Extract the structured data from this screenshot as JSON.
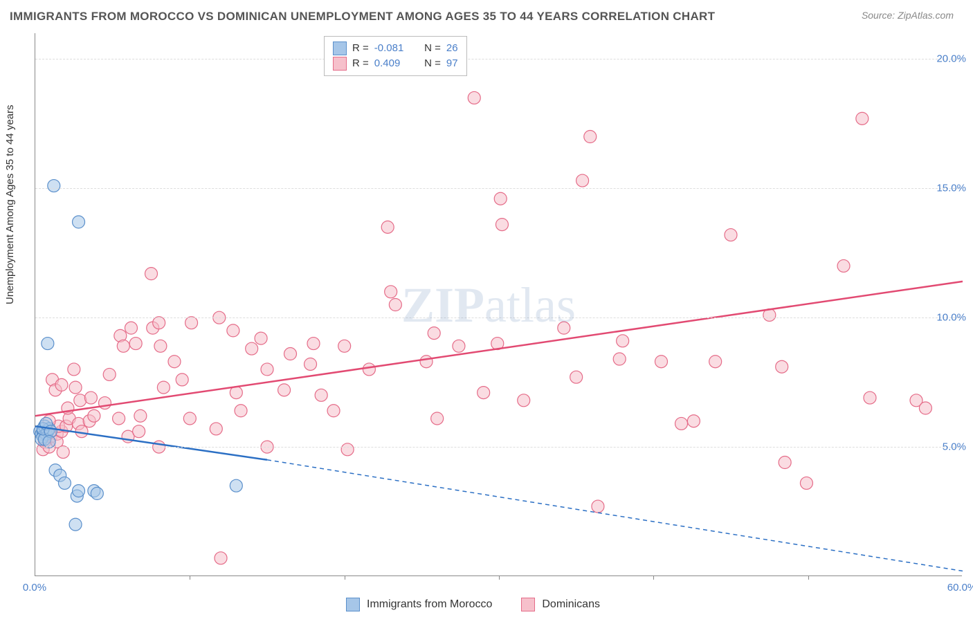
{
  "title": "IMMIGRANTS FROM MOROCCO VS DOMINICAN UNEMPLOYMENT AMONG AGES 35 TO 44 YEARS CORRELATION CHART",
  "source": "Source: ZipAtlas.com",
  "ylabel": "Unemployment Among Ages 35 to 44 years",
  "watermark_bold": "ZIP",
  "watermark_rest": "atlas",
  "chart": {
    "type": "scatter",
    "xlim": [
      0,
      60
    ],
    "ylim": [
      0,
      21
    ],
    "xtick_labels": [
      "0.0%",
      "60.0%"
    ],
    "xtick_positions": [
      0,
      60
    ],
    "xtick_marks": [
      10,
      20,
      30,
      40,
      50
    ],
    "ytick_labels": [
      "5.0%",
      "10.0%",
      "15.0%",
      "20.0%"
    ],
    "ytick_positions": [
      5,
      10,
      15,
      20
    ],
    "grid_color": "#dddddd",
    "background_color": "#ffffff",
    "marker_radius": 9,
    "marker_stroke_width": 1.2,
    "series": [
      {
        "name": "Immigrants from Morocco",
        "fill_color": "#a6c6e8",
        "stroke_color": "#5a8fcb",
        "fill_opacity": 0.55,
        "line_color": "#2b6fc4",
        "line_width": 2.5,
        "R": "-0.081",
        "N": "26",
        "trend_solid": {
          "x1": 0,
          "y1": 5.8,
          "x2": 15,
          "y2": 4.5
        },
        "trend_dashed": {
          "x1": 15,
          "y1": 4.5,
          "x2": 60,
          "y2": 0.2
        },
        "points": [
          [
            0.3,
            5.6
          ],
          [
            0.4,
            5.5
          ],
          [
            0.5,
            5.6
          ],
          [
            0.6,
            5.8
          ],
          [
            0.5,
            5.4
          ],
          [
            0.7,
            5.5
          ],
          [
            0.8,
            5.6
          ],
          [
            0.4,
            5.3
          ],
          [
            0.9,
            5.7
          ],
          [
            0.6,
            5.3
          ],
          [
            0.5,
            5.7
          ],
          [
            0.7,
            5.9
          ],
          [
            1.0,
            5.6
          ],
          [
            1.2,
            15.1
          ],
          [
            2.8,
            13.7
          ],
          [
            0.8,
            9.0
          ],
          [
            1.3,
            4.1
          ],
          [
            1.6,
            3.9
          ],
          [
            1.9,
            3.6
          ],
          [
            2.7,
            3.1
          ],
          [
            2.8,
            3.3
          ],
          [
            3.8,
            3.3
          ],
          [
            4.0,
            3.2
          ],
          [
            2.6,
            2.0
          ],
          [
            13.0,
            3.5
          ],
          [
            0.9,
            5.2
          ]
        ]
      },
      {
        "name": "Dominicans",
        "fill_color": "#f6c0cb",
        "stroke_color": "#e56b88",
        "fill_opacity": 0.55,
        "line_color": "#e24a72",
        "line_width": 2.5,
        "R": "0.409",
        "N": "97",
        "trend_solid": {
          "x1": 0,
          "y1": 6.2,
          "x2": 60,
          "y2": 11.4
        },
        "trend_dashed": null,
        "points": [
          [
            0.5,
            4.9
          ],
          [
            0.6,
            5.2
          ],
          [
            0.9,
            5.0
          ],
          [
            1.0,
            5.4
          ],
          [
            1.4,
            5.5
          ],
          [
            1.4,
            5.2
          ],
          [
            1.7,
            5.6
          ],
          [
            1.5,
            5.8
          ],
          [
            1.8,
            4.8
          ],
          [
            2.0,
            5.8
          ],
          [
            2.2,
            6.1
          ],
          [
            2.1,
            6.5
          ],
          [
            2.8,
            5.9
          ],
          [
            2.9,
            6.8
          ],
          [
            1.1,
            7.6
          ],
          [
            1.3,
            7.2
          ],
          [
            1.7,
            7.4
          ],
          [
            2.6,
            7.3
          ],
          [
            2.5,
            8.0
          ],
          [
            0.9,
            6.0
          ],
          [
            3.5,
            6.0
          ],
          [
            3.6,
            6.9
          ],
          [
            3.8,
            6.2
          ],
          [
            4.5,
            6.7
          ],
          [
            4.8,
            7.8
          ],
          [
            3.0,
            5.6
          ],
          [
            5.4,
            6.1
          ],
          [
            5.5,
            9.3
          ],
          [
            5.7,
            8.9
          ],
          [
            6.2,
            9.6
          ],
          [
            6.5,
            9.0
          ],
          [
            6.8,
            6.2
          ],
          [
            6.0,
            5.4
          ],
          [
            6.7,
            5.6
          ],
          [
            7.5,
            11.7
          ],
          [
            7.6,
            9.6
          ],
          [
            8.0,
            9.8
          ],
          [
            8.1,
            8.9
          ],
          [
            8.3,
            7.3
          ],
          [
            8.0,
            5.0
          ],
          [
            9.0,
            8.3
          ],
          [
            9.5,
            7.6
          ],
          [
            10.1,
            9.8
          ],
          [
            10.0,
            6.1
          ],
          [
            11.7,
            5.7
          ],
          [
            11.9,
            10.0
          ],
          [
            12.8,
            9.5
          ],
          [
            13.0,
            7.1
          ],
          [
            13.3,
            6.4
          ],
          [
            14.0,
            8.8
          ],
          [
            14.6,
            9.2
          ],
          [
            15.0,
            8.0
          ],
          [
            15.0,
            5.0
          ],
          [
            16.1,
            7.2
          ],
          [
            16.5,
            8.6
          ],
          [
            17.8,
            8.2
          ],
          [
            18.0,
            9.0
          ],
          [
            18.5,
            7.0
          ],
          [
            19.3,
            6.4
          ],
          [
            20.0,
            8.9
          ],
          [
            20.2,
            4.9
          ],
          [
            21.6,
            8.0
          ],
          [
            22.8,
            13.5
          ],
          [
            23.0,
            11.0
          ],
          [
            23.3,
            10.5
          ],
          [
            25.3,
            8.3
          ],
          [
            25.8,
            9.4
          ],
          [
            26.0,
            6.1
          ],
          [
            27.4,
            8.9
          ],
          [
            28.4,
            18.5
          ],
          [
            29.0,
            7.1
          ],
          [
            29.9,
            9.0
          ],
          [
            30.1,
            14.6
          ],
          [
            30.2,
            13.6
          ],
          [
            31.6,
            6.8
          ],
          [
            34.2,
            9.6
          ],
          [
            35.0,
            7.7
          ],
          [
            35.4,
            15.3
          ],
          [
            35.9,
            17.0
          ],
          [
            36.4,
            2.7
          ],
          [
            38.0,
            9.1
          ],
          [
            37.8,
            8.4
          ],
          [
            40.5,
            8.3
          ],
          [
            41.8,
            5.9
          ],
          [
            42.6,
            6.0
          ],
          [
            44.0,
            8.3
          ],
          [
            45.0,
            13.2
          ],
          [
            47.5,
            10.1
          ],
          [
            48.3,
            8.1
          ],
          [
            48.5,
            4.4
          ],
          [
            49.9,
            3.6
          ],
          [
            52.3,
            12.0
          ],
          [
            53.5,
            17.7
          ],
          [
            54.0,
            6.9
          ],
          [
            57.0,
            6.8
          ],
          [
            57.6,
            6.5
          ],
          [
            12.0,
            0.7
          ]
        ]
      }
    ]
  },
  "legend_bottom": [
    {
      "label": "Immigrants from Morocco",
      "fill": "#a6c6e8",
      "stroke": "#5a8fcb"
    },
    {
      "label": "Dominicans",
      "fill": "#f6c0cb",
      "stroke": "#e56b88"
    }
  ]
}
